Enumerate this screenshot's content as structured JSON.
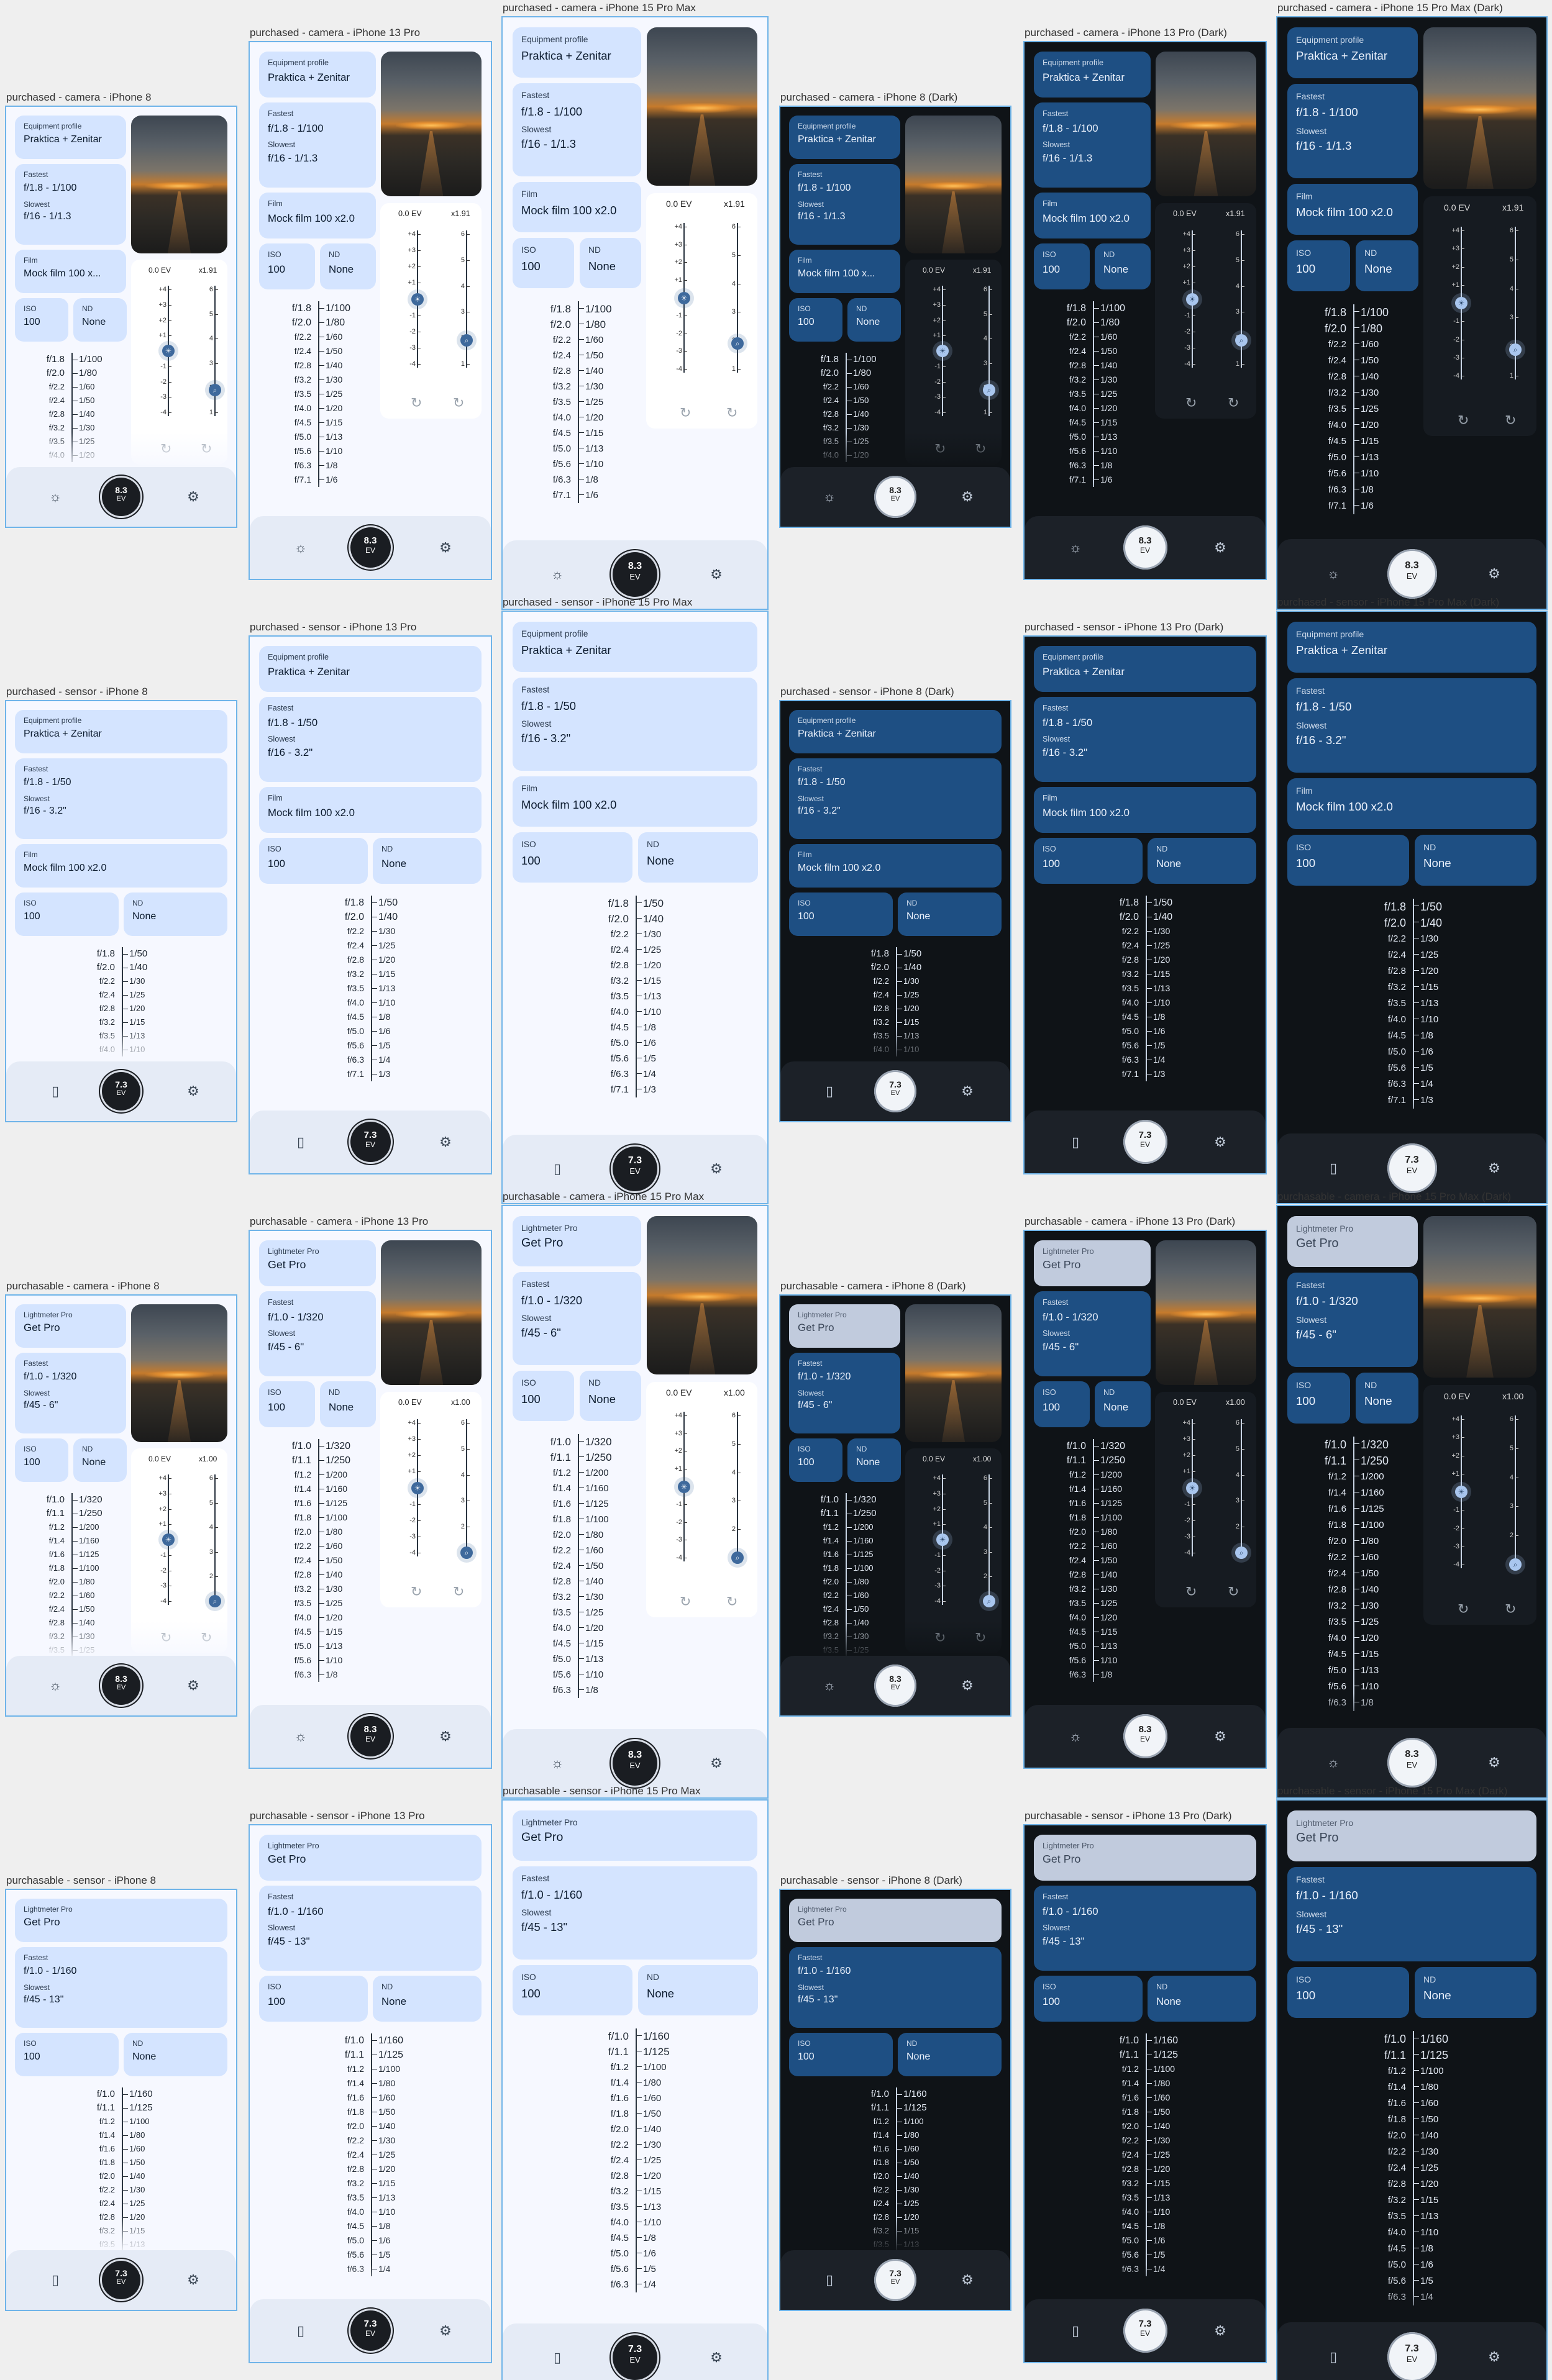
{
  "captions": [
    "purchased - camera - iPhone 8",
    "purchased - camera - iPhone 13 Pro",
    "purchased - camera - iPhone 15 Pro Max",
    "purchased - camera - iPhone 8 (Dark)",
    "purchased - camera - iPhone 13 Pro (Dark)",
    "purchased - camera - iPhone 15 Pro Max (Dark)",
    "purchased - sensor - iPhone 8",
    "purchased - sensor - iPhone 13 Pro",
    "purchased - sensor - iPhone 15 Pro Max",
    "purchased - sensor - iPhone 8 (Dark)",
    "purchased - sensor - iPhone 13 Pro (Dark)",
    "purchased - sensor - iPhone 15 Pro Max (Dark)",
    "purchasable - camera - iPhone 8",
    "purchasable - camera - iPhone 13 Pro",
    "purchasable - camera - iPhone 15 Pro Max",
    "purchasable - camera - iPhone 8 (Dark)",
    "purchasable - camera - iPhone 13 Pro (Dark)",
    "purchasable - camera - iPhone 15 Pro Max (Dark)",
    "purchasable - sensor - iPhone 8",
    "purchasable - sensor - iPhone 13 Pro",
    "purchasable - sensor - iPhone 15 Pro Max",
    "purchasable - sensor - iPhone 8 (Dark)",
    "purchasable - sensor - iPhone 13 Pro (Dark)",
    "purchasable - sensor - iPhone 15 Pro Max (Dark)"
  ],
  "labels": {
    "equipment_profile": "Equipment profile",
    "fastest": "Fastest",
    "slowest": "Slowest",
    "film": "Film",
    "iso": "ISO",
    "nd": "ND",
    "lightmeter_pro": "Lightmeter Pro",
    "get_pro": "Get Pro",
    "ev_unit": "EV"
  },
  "purchased": {
    "equipment_profile": "Praktica + Zenitar",
    "fastest": "f/1.8 - 1/100",
    "fastest_sensor": "f/1.8 - 1/50",
    "slowest": "f/16 - 1/1.3",
    "slowest_sensor": "f/16 - 3.2\"",
    "film": "Mock film 100 x2.0",
    "film_short": "Mock film 100 x...",
    "iso": "100",
    "nd": "None",
    "ev_offset": "0.0 EV",
    "zoom": "x1.91",
    "ev_camera": "8.3",
    "ev_sensor": "7.3"
  },
  "purchasable": {
    "fastest": "f/1.0 - 1/320",
    "fastest_sensor": "f/1.0 - 1/160",
    "slowest": "f/45 - 6\"",
    "slowest_sensor": "f/45 - 13\"",
    "iso": "100",
    "nd": "None",
    "ev_offset": "0.0 EV",
    "zoom": "x1.00",
    "ev_camera": "8.3",
    "ev_sensor": "7.3"
  },
  "ev_ticks": [
    "+4",
    "+3",
    "+2",
    "+1",
    "0",
    "-1",
    "-2",
    "-3",
    "-4"
  ],
  "zoom_ticks": [
    "6",
    "5",
    "4",
    "3",
    "2",
    "1"
  ],
  "exposure_pairs": {
    "purchased_camera": [
      [
        "f/1.8",
        "1/100"
      ],
      [
        "f/2.0",
        "1/80"
      ],
      [
        "f/2.2",
        "1/60"
      ],
      [
        "f/2.4",
        "1/50"
      ],
      [
        "f/2.8",
        "1/40"
      ],
      [
        "f/3.2",
        "1/30"
      ],
      [
        "f/3.5",
        "1/25"
      ],
      [
        "f/4.0",
        "1/20"
      ],
      [
        "f/4.5",
        "1/15"
      ],
      [
        "f/5.0",
        "1/13"
      ],
      [
        "f/5.6",
        "1/10"
      ],
      [
        "f/6.3",
        "1/8"
      ],
      [
        "f/7.1",
        "1/6"
      ]
    ],
    "purchased_sensor": [
      [
        "f/1.8",
        "1/50"
      ],
      [
        "f/2.0",
        "1/40"
      ],
      [
        "f/2.2",
        "1/30"
      ],
      [
        "f/2.4",
        "1/25"
      ],
      [
        "f/2.8",
        "1/20"
      ],
      [
        "f/3.2",
        "1/15"
      ],
      [
        "f/3.5",
        "1/13"
      ],
      [
        "f/4.0",
        "1/10"
      ],
      [
        "f/4.5",
        "1/8"
      ],
      [
        "f/5.0",
        "1/6"
      ],
      [
        "f/5.6",
        "1/5"
      ],
      [
        "f/6.3",
        "1/4"
      ],
      [
        "f/7.1",
        "1/3"
      ]
    ],
    "purchasable_camera": [
      [
        "f/1.0",
        "1/320"
      ],
      [
        "f/1.1",
        "1/250"
      ],
      [
        "f/1.2",
        "1/200"
      ],
      [
        "f/1.4",
        "1/160"
      ],
      [
        "f/1.6",
        "1/125"
      ],
      [
        "f/1.8",
        "1/100"
      ],
      [
        "f/2.0",
        "1/80"
      ],
      [
        "f/2.2",
        "1/60"
      ],
      [
        "f/2.4",
        "1/50"
      ],
      [
        "f/2.8",
        "1/40"
      ],
      [
        "f/3.2",
        "1/30"
      ],
      [
        "f/3.5",
        "1/25"
      ],
      [
        "f/4.0",
        "1/20"
      ],
      [
        "f/4.5",
        "1/15"
      ],
      [
        "f/5.0",
        "1/13"
      ],
      [
        "f/5.6",
        "1/10"
      ],
      [
        "f/6.3",
        "1/8"
      ]
    ],
    "purchasable_sensor": [
      [
        "f/1.0",
        "1/160"
      ],
      [
        "f/1.1",
        "1/125"
      ],
      [
        "f/1.2",
        "1/100"
      ],
      [
        "f/1.4",
        "1/80"
      ],
      [
        "f/1.6",
        "1/60"
      ],
      [
        "f/1.8",
        "1/50"
      ],
      [
        "f/2.0",
        "1/40"
      ],
      [
        "f/2.2",
        "1/30"
      ],
      [
        "f/2.4",
        "1/25"
      ],
      [
        "f/2.8",
        "1/20"
      ],
      [
        "f/3.2",
        "1/15"
      ],
      [
        "f/3.5",
        "1/13"
      ],
      [
        "f/4.0",
        "1/10"
      ],
      [
        "f/4.5",
        "1/8"
      ],
      [
        "f/5.0",
        "1/6"
      ],
      [
        "f/5.6",
        "1/5"
      ],
      [
        "f/6.3",
        "1/4"
      ]
    ]
  },
  "icons": {
    "ev_knob": "sun-icon",
    "zoom_knob": "magnifier-icon",
    "reset": "reset-icon",
    "camera_mode": "lightbulb-icon",
    "sensor_mode": "phone-sensor-icon",
    "settings": "gear-icon"
  },
  "colors": {
    "accent_light": "#3f6a9d",
    "card_light": "#d4e4ff",
    "card_dark": "#1e4f83",
    "pro_light": "#4c5669",
    "pro_dark": "#c1cbdd",
    "background_dark": "#0f1317",
    "frame_border": "#6fb4e9"
  }
}
